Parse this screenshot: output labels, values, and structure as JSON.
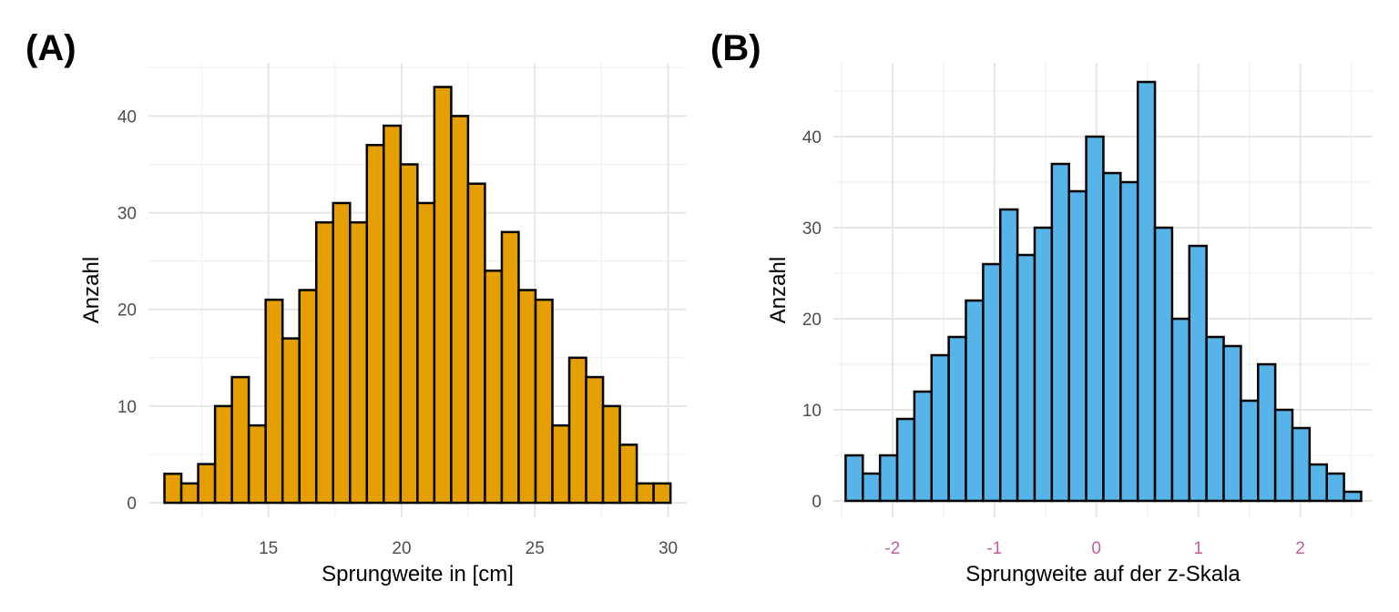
{
  "chart_data": [
    {
      "type": "bar",
      "panel_label": "(A)",
      "xlabel": "Sprungweite in [cm]",
      "ylabel": "Anzahl",
      "xlim": [
        10.5,
        30.7
      ],
      "ylim": [
        -1.5,
        45.5
      ],
      "xticks": [
        15,
        20,
        25,
        30
      ],
      "yticks": [
        0,
        10,
        20,
        30,
        40
      ],
      "x_tick_color": "#4d4d4d",
      "fill_color": "#E69F00",
      "bin_start": 11.1,
      "bin_width": 0.633,
      "values": [
        3,
        2,
        4,
        10,
        13,
        8,
        21,
        17,
        22,
        29,
        31,
        29,
        37,
        39,
        35,
        31,
        43,
        40,
        33,
        24,
        28,
        22,
        21,
        8,
        15,
        13,
        10,
        6,
        2,
        2
      ],
      "grid": true
    },
    {
      "type": "bar",
      "panel_label": "(B)",
      "xlabel": "Sprungweite auf der z-Skala",
      "ylabel": "Anzahl",
      "xlim": [
        -2.58,
        2.71
      ],
      "ylim": [
        -1.8,
        48.1
      ],
      "xticks": [
        -2,
        -1,
        0,
        1,
        2
      ],
      "x_tick_labels": [
        "-2",
        "-1",
        "0",
        "1",
        "2"
      ],
      "yticks": [
        0,
        10,
        20,
        30,
        40
      ],
      "x_tick_color": "#C0609A",
      "fill_color": "#56B4E9",
      "bin_start": -2.46,
      "bin_width": 0.1686,
      "values": [
        5,
        3,
        5,
        9,
        12,
        16,
        18,
        22,
        26,
        32,
        27,
        30,
        37,
        34,
        40,
        36,
        35,
        46,
        30,
        20,
        28,
        18,
        17,
        11,
        15,
        10,
        8,
        4,
        3,
        1
      ],
      "grid": true
    }
  ]
}
